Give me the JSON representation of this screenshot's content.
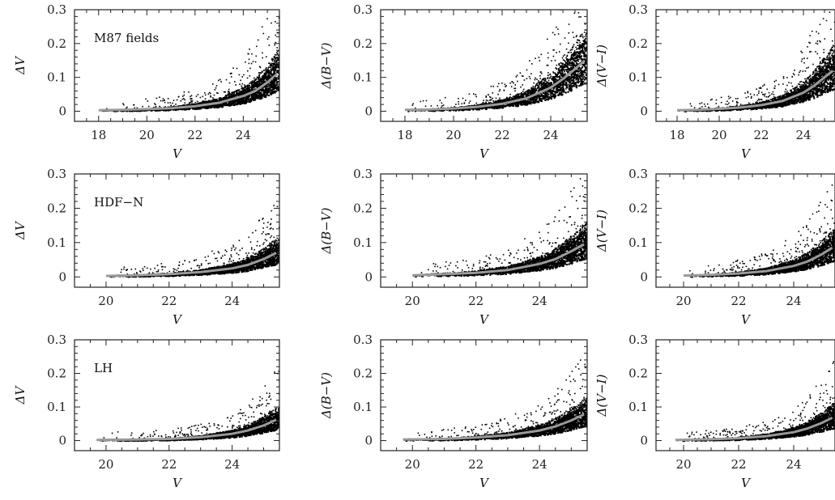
{
  "chart_data": [
    {
      "type": "scatter",
      "panel_label": "M87 fields",
      "xlabel": "V",
      "ylabel": "ΔV",
      "xlim": [
        17,
        25.5
      ],
      "ylim": [
        -0.03,
        0.3
      ],
      "xticks": [
        "18",
        "20",
        "22",
        "24"
      ],
      "yticks": [
        "0",
        "0.1",
        "0.2",
        "0.3"
      ],
      "trend": {
        "x": [
          18,
          19,
          20,
          21,
          22,
          23,
          24,
          24.5,
          25,
          25.4
        ],
        "y": [
          0.003,
          0.004,
          0.006,
          0.009,
          0.015,
          0.025,
          0.045,
          0.06,
          0.085,
          0.11
        ]
      }
    },
    {
      "type": "scatter",
      "panel_label": "",
      "xlabel": "V",
      "ylabel": "Δ(B−V)",
      "xlim": [
        17,
        25.5
      ],
      "ylim": [
        -0.03,
        0.3
      ],
      "xticks": [
        "18",
        "20",
        "22",
        "24"
      ],
      "yticks": [
        "0",
        "0.1",
        "0.2",
        "0.3"
      ],
      "trend": {
        "x": [
          18,
          19,
          20,
          21,
          22,
          23,
          24,
          24.5,
          25,
          25.4
        ],
        "y": [
          0.004,
          0.005,
          0.008,
          0.013,
          0.022,
          0.038,
          0.07,
          0.095,
          0.125,
          0.15
        ]
      }
    },
    {
      "type": "scatter",
      "panel_label": "",
      "xlabel": "V",
      "ylabel": "Δ(V−I)",
      "xlim": [
        17,
        25.5
      ],
      "ylim": [
        -0.03,
        0.3
      ],
      "xticks": [
        "18",
        "20",
        "22",
        "24"
      ],
      "yticks": [
        "0",
        "0.1",
        "0.2",
        "0.3"
      ],
      "trend": {
        "x": [
          18,
          19,
          20,
          21,
          22,
          23,
          24,
          24.5,
          25,
          25.4
        ],
        "y": [
          0.003,
          0.004,
          0.007,
          0.011,
          0.018,
          0.03,
          0.055,
          0.075,
          0.1,
          0.12
        ]
      }
    },
    {
      "type": "scatter",
      "panel_label": "HDF−N",
      "xlabel": "V",
      "ylabel": "ΔV",
      "xlim": [
        19,
        25.5
      ],
      "ylim": [
        -0.03,
        0.3
      ],
      "xticks": [
        "20",
        "22",
        "24"
      ],
      "yticks": [
        "0",
        "0.1",
        "0.2",
        "0.3"
      ],
      "trend": {
        "x": [
          20,
          21,
          22,
          23,
          24,
          24.5,
          25,
          25.4
        ],
        "y": [
          0.003,
          0.005,
          0.008,
          0.014,
          0.025,
          0.035,
          0.052,
          0.07
        ]
      }
    },
    {
      "type": "scatter",
      "panel_label": "",
      "xlabel": "V",
      "ylabel": "Δ(B−V)",
      "xlim": [
        19,
        25.5
      ],
      "ylim": [
        -0.03,
        0.3
      ],
      "xticks": [
        "20",
        "22",
        "24"
      ],
      "yticks": [
        "0",
        "0.1",
        "0.2",
        "0.3"
      ],
      "trend": {
        "x": [
          20,
          21,
          22,
          23,
          24,
          24.5,
          25,
          25.4
        ],
        "y": [
          0.005,
          0.008,
          0.012,
          0.02,
          0.038,
          0.052,
          0.075,
          0.095
        ]
      }
    },
    {
      "type": "scatter",
      "panel_label": "",
      "xlabel": "V",
      "ylabel": "Δ(V−I)",
      "xlim": [
        19,
        25.5
      ],
      "ylim": [
        -0.03,
        0.3
      ],
      "xticks": [
        "20",
        "22",
        "24"
      ],
      "yticks": [
        "0",
        "0.1",
        "0.2",
        "0.3"
      ],
      "trend": {
        "x": [
          20,
          21,
          22,
          23,
          24,
          24.5,
          25,
          25.4
        ],
        "y": [
          0.004,
          0.006,
          0.01,
          0.017,
          0.032,
          0.045,
          0.065,
          0.085
        ]
      }
    },
    {
      "type": "scatter",
      "panel_label": "LH",
      "xlabel": "V",
      "ylabel": "ΔV",
      "xlim": [
        19,
        25.5
      ],
      "ylim": [
        -0.03,
        0.3
      ],
      "xticks": [
        "20",
        "22",
        "24"
      ],
      "yticks": [
        "0",
        "0.1",
        "0.2",
        "0.3"
      ],
      "trend": {
        "x": [
          19.7,
          21,
          22,
          23,
          24,
          24.5,
          25,
          25.4
        ],
        "y": [
          0.002,
          0.003,
          0.005,
          0.01,
          0.02,
          0.03,
          0.045,
          0.062
        ]
      }
    },
    {
      "type": "scatter",
      "panel_label": "",
      "xlabel": "V",
      "ylabel": "Δ(B−V)",
      "xlim": [
        19,
        25.5
      ],
      "ylim": [
        -0.03,
        0.3
      ],
      "xticks": [
        "20",
        "22",
        "24"
      ],
      "yticks": [
        "0",
        "0.1",
        "0.2",
        "0.3"
      ],
      "trend": {
        "x": [
          19.7,
          21,
          22,
          23,
          24,
          24.5,
          25,
          25.4
        ],
        "y": [
          0.003,
          0.005,
          0.009,
          0.016,
          0.03,
          0.042,
          0.06,
          0.078
        ]
      }
    },
    {
      "type": "scatter",
      "panel_label": "",
      "xlabel": "V",
      "ylabel": "Δ(V−I)",
      "xlim": [
        19,
        25.5
      ],
      "ylim": [
        -0.03,
        0.3
      ],
      "xticks": [
        "20",
        "22",
        "24"
      ],
      "yticks": [
        "0",
        "0.1",
        "0.2",
        "0.3"
      ],
      "trend": {
        "x": [
          19.7,
          21,
          22,
          23,
          24,
          24.5,
          25,
          25.4
        ],
        "y": [
          0.002,
          0.004,
          0.007,
          0.013,
          0.025,
          0.036,
          0.052,
          0.068
        ]
      }
    }
  ],
  "colors": {
    "points": "#000000",
    "trend": "#9a9a9a",
    "axes": "#222222"
  }
}
